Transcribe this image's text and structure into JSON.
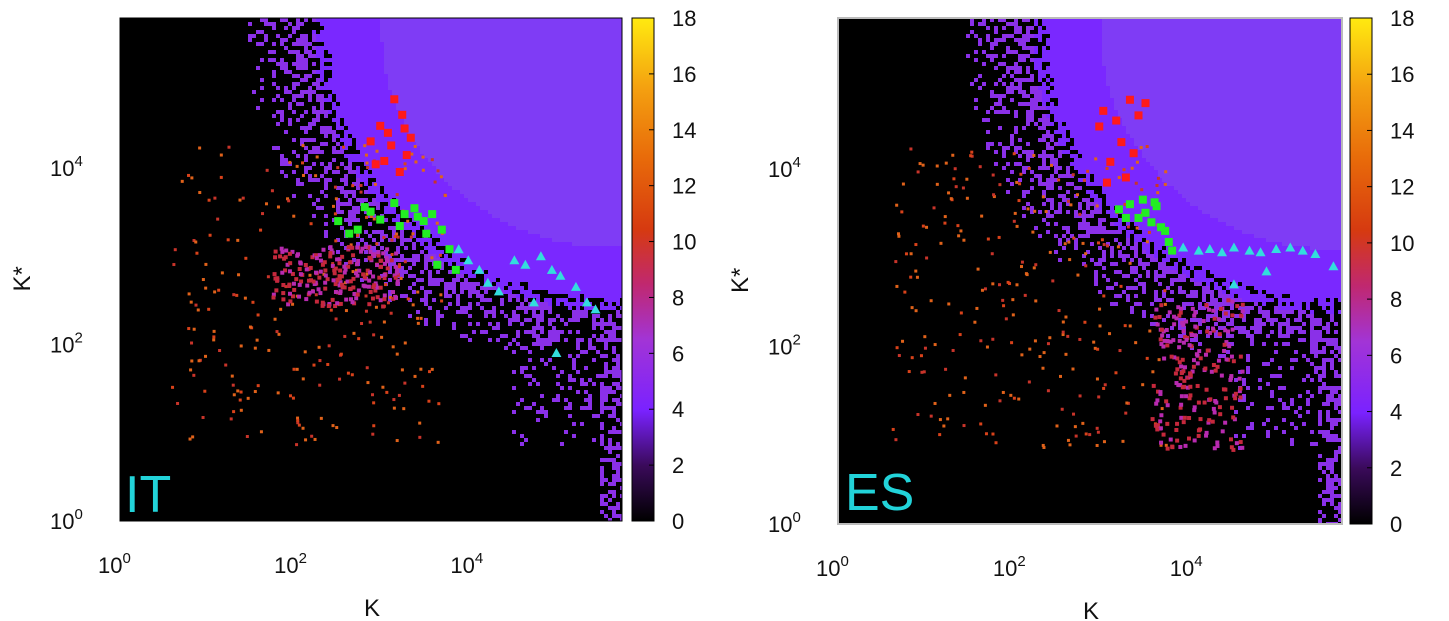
{
  "chart_data": [
    {
      "type": "heatmap",
      "panel_label": "IT",
      "xlabel": "K",
      "ylabel": "K*",
      "x_scale": "log",
      "y_scale": "log",
      "xlim": [
        1,
        500000
      ],
      "ylim": [
        1,
        500000
      ],
      "x_ticks": [
        {
          "value": 1,
          "base": "10",
          "exp": "0"
        },
        {
          "value": 100,
          "base": "10",
          "exp": "2"
        },
        {
          "value": 10000,
          "base": "10",
          "exp": "4"
        }
      ],
      "y_ticks": [
        {
          "value": 1,
          "base": "10",
          "exp": "0"
        },
        {
          "value": 100,
          "base": "10",
          "exp": "2"
        },
        {
          "value": 10000,
          "base": "10",
          "exp": "4"
        }
      ],
      "colorbar": {
        "min": 0,
        "max": 18,
        "ticks": [
          "0",
          "2",
          "4",
          "6",
          "8",
          "10",
          "12",
          "14",
          "16",
          "18"
        ]
      },
      "scatter_groups": [
        {
          "color": "#ff1a1a",
          "marker": "square",
          "points": [
            [
              1000,
              12000
            ],
            [
              1200,
              18000
            ],
            [
              1500,
              9000
            ],
            [
              1800,
              14000
            ],
            [
              1100,
              25000
            ],
            [
              900,
              30000
            ],
            [
              1600,
              40000
            ],
            [
              1300,
              60000
            ],
            [
              2000,
              22000
            ],
            [
              700,
              20000
            ],
            [
              800,
              11000
            ],
            [
              1700,
              28000
            ]
          ]
        },
        {
          "color": "#22ee22",
          "marker": "square",
          "points": [
            [
              300,
              2500
            ],
            [
              500,
              2000
            ],
            [
              700,
              3200
            ],
            [
              900,
              2600
            ],
            [
              1300,
              4000
            ],
            [
              1700,
              3000
            ],
            [
              2200,
              3500
            ],
            [
              2800,
              2500
            ],
            [
              3500,
              3000
            ],
            [
              4500,
              2000
            ],
            [
              5500,
              1200
            ],
            [
              6500,
              700
            ],
            [
              4000,
              800
            ],
            [
              3000,
              1800
            ],
            [
              2400,
              2800
            ],
            [
              1500,
              2200
            ],
            [
              600,
              3600
            ],
            [
              400,
              1800
            ]
          ]
        },
        {
          "color": "#33dddd",
          "marker": "triangle",
          "points": [
            [
              7000,
              1200
            ],
            [
              9000,
              900
            ],
            [
              12000,
              700
            ],
            [
              15000,
              500
            ],
            [
              20000,
              400
            ],
            [
              30000,
              900
            ],
            [
              40000,
              800
            ],
            [
              60000,
              1000
            ],
            [
              80000,
              700
            ],
            [
              100000,
              600
            ],
            [
              150000,
              450
            ],
            [
              200000,
              300
            ],
            [
              250000,
              250
            ],
            [
              90000,
              80
            ],
            [
              50000,
              300
            ]
          ]
        }
      ]
    },
    {
      "type": "heatmap",
      "panel_label": "ES",
      "xlabel": "K",
      "ylabel": "K*",
      "x_scale": "log",
      "y_scale": "log",
      "xlim": [
        1,
        500000
      ],
      "ylim": [
        1,
        500000
      ],
      "x_ticks": [
        {
          "value": 1,
          "base": "10",
          "exp": "0"
        },
        {
          "value": 100,
          "base": "10",
          "exp": "2"
        },
        {
          "value": 10000,
          "base": "10",
          "exp": "4"
        }
      ],
      "y_ticks": [
        {
          "value": 1,
          "base": "10",
          "exp": "0"
        },
        {
          "value": 100,
          "base": "10",
          "exp": "2"
        },
        {
          "value": 10000,
          "base": "10",
          "exp": "4"
        }
      ],
      "colorbar": {
        "min": 0,
        "max": 18,
        "ticks": [
          "0",
          "2",
          "4",
          "6",
          "8",
          "10",
          "12",
          "14",
          "16",
          "18"
        ]
      },
      "scatter_groups": [
        {
          "color": "#ff1a1a",
          "marker": "square",
          "points": [
            [
              1000,
              45000
            ],
            [
              1400,
              35000
            ],
            [
              2000,
              60000
            ],
            [
              1600,
              20000
            ],
            [
              1200,
              12000
            ],
            [
              2500,
              40000
            ],
            [
              3000,
              55000
            ],
            [
              900,
              30000
            ],
            [
              1800,
              8000
            ],
            [
              2200,
              15000
            ],
            [
              1100,
              7000
            ]
          ]
        },
        {
          "color": "#22ee22",
          "marker": "square",
          "points": [
            [
              1500,
              3500
            ],
            [
              2000,
              4000
            ],
            [
              2500,
              2800
            ],
            [
              3000,
              3200
            ],
            [
              3500,
              2500
            ],
            [
              4000,
              3800
            ],
            [
              5000,
              2000
            ],
            [
              5500,
              1500
            ],
            [
              6000,
              1200
            ],
            [
              4500,
              2200
            ],
            [
              3800,
              4200
            ],
            [
              2800,
              4500
            ],
            [
              1800,
              2800
            ]
          ]
        },
        {
          "color": "#33dddd",
          "marker": "triangle",
          "points": [
            [
              8000,
              1300
            ],
            [
              12000,
              1200
            ],
            [
              16000,
              1250
            ],
            [
              22000,
              1150
            ],
            [
              30000,
              1300
            ],
            [
              45000,
              1200
            ],
            [
              60000,
              1150
            ],
            [
              90000,
              1250
            ],
            [
              130000,
              1300
            ],
            [
              180000,
              1200
            ],
            [
              250000,
              1100
            ],
            [
              400000,
              800
            ],
            [
              30000,
              500
            ],
            [
              70000,
              700
            ]
          ]
        }
      ]
    }
  ]
}
